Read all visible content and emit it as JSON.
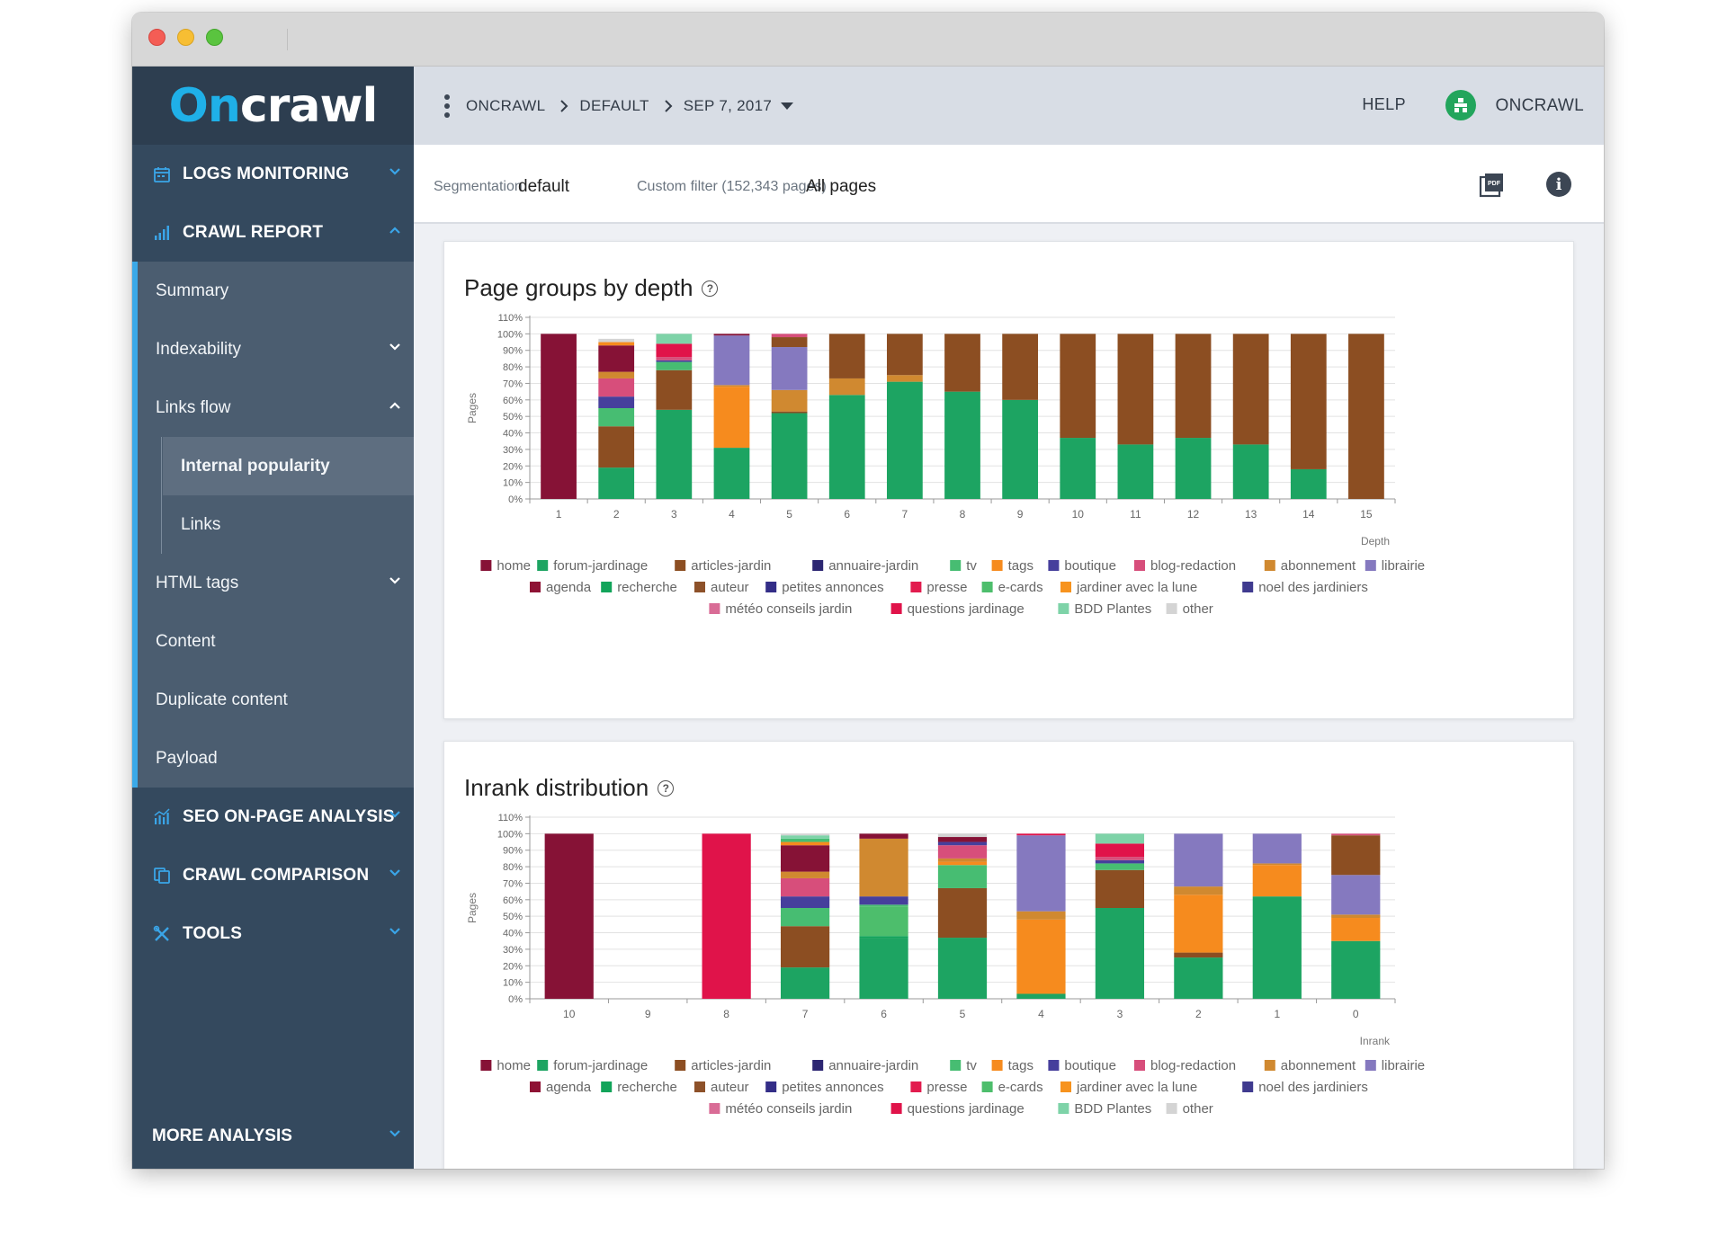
{
  "app": {
    "logo_on": "On",
    "logo_crawl": "crawl"
  },
  "sidebar": {
    "logs_monitoring": "LOGS MONITORING",
    "crawl_report": "CRAWL REPORT",
    "sub": {
      "summary": "Summary",
      "indexability": "Indexability",
      "links_flow": "Links flow",
      "internal_popularity": "Internal popularity",
      "links": "Links",
      "html_tags": "HTML tags",
      "content": "Content",
      "duplicate_content": "Duplicate content",
      "payload": "Payload"
    },
    "seo_onpage": "SEO ON-PAGE ANALYSIS",
    "crawl_comparison": "CRAWL COMPARISON",
    "tools": "TOOLS",
    "more_analysis": "MORE ANALYSIS"
  },
  "header": {
    "breadcrumb": [
      "ONCRAWL",
      "DEFAULT",
      "SEP 7, 2017"
    ],
    "help": "HELP",
    "user": "ONCRAWL"
  },
  "filter": {
    "segmentation_label": "Segmentation",
    "segmentation_value": "default",
    "custom_label": "Custom filter (152,343 pages)",
    "custom_value": "All pages"
  },
  "colors": {
    "home": "#861236",
    "forum-jardinage": "#1da462",
    "articles-jardin": "#8c4e22",
    "annuaire-jardin": "#2c2672",
    "tv": "#47bd72",
    "tags": "#f68b1e",
    "boutique": "#463f9c",
    "blog-redaction": "#d74e7b",
    "abonnement": "#d08930",
    "librairie": "#8579bf",
    "agenda": "#8e1234",
    "recherche": "#12a45a",
    "auteur": "#8d5129",
    "petites annonces": "#332d87",
    "presse": "#e21c4e",
    "e-cards": "#4dbe6c",
    "jardiner avec la lune": "#f7931e",
    "noel des jardiniers": "#3f3a8f",
    "météo conseils jardin": "#d96c96",
    "questions jardinage": "#e0134a",
    "BDD Plantes": "#7ed3a8",
    "other": "#d4d4d4"
  },
  "legend": [
    [
      "home",
      "forum-jardinage",
      "articles-jardin",
      "annuaire-jardin",
      "tv",
      "tags",
      "boutique",
      "blog-redaction",
      "abonnement",
      "librairie"
    ],
    [
      "agenda",
      "recherche",
      "auteur",
      "petites annonces",
      "presse",
      "e-cards",
      "jardiner avec la lune",
      "noel des jardiniers"
    ],
    [
      "météo conseils jardin",
      "questions jardinage",
      "BDD Plantes",
      "other"
    ]
  ],
  "chart_data": [
    {
      "type": "bar",
      "stacked": true,
      "title": "Page groups by depth",
      "xlabel": "Depth",
      "ylabel": "Pages",
      "ylim": [
        0,
        110
      ],
      "yticks": [
        "0%",
        "10%",
        "20%",
        "30%",
        "40%",
        "50%",
        "60%",
        "70%",
        "80%",
        "90%",
        "100%",
        "110%"
      ],
      "categories": [
        "1",
        "2",
        "3",
        "4",
        "5",
        "6",
        "7",
        "8",
        "9",
        "10",
        "11",
        "12",
        "13",
        "14",
        "15"
      ],
      "stacks": [
        [
          [
            "home",
            100
          ]
        ],
        [
          [
            "forum-jardinage",
            19
          ],
          [
            "articles-jardin",
            25
          ],
          [
            "tv",
            11
          ],
          [
            "boutique",
            7
          ],
          [
            "blog-redaction",
            11
          ],
          [
            "abonnement",
            4
          ],
          [
            "home",
            16
          ],
          [
            "tags",
            2
          ],
          [
            "other",
            2
          ]
        ],
        [
          [
            "forum-jardinage",
            54
          ],
          [
            "articles-jardin",
            24
          ],
          [
            "tv",
            5
          ],
          [
            "boutique",
            1
          ],
          [
            "blog-redaction",
            2
          ],
          [
            "questions jardinage",
            8
          ],
          [
            "BDD Plantes",
            6
          ]
        ],
        [
          [
            "forum-jardinage",
            31
          ],
          [
            "tags",
            37
          ],
          [
            "abonnement",
            1
          ],
          [
            "librairie",
            30
          ],
          [
            "home",
            1
          ]
        ],
        [
          [
            "forum-jardinage",
            52
          ],
          [
            "articles-jardin",
            1
          ],
          [
            "abonnement",
            13
          ],
          [
            "librairie",
            26
          ],
          [
            "articles-jardin",
            6
          ],
          [
            "blog-redaction",
            2
          ]
        ],
        [
          [
            "forum-jardinage",
            63
          ],
          [
            "abonnement",
            10
          ],
          [
            "articles-jardin",
            27
          ]
        ],
        [
          [
            "forum-jardinage",
            71
          ],
          [
            "abonnement",
            4
          ],
          [
            "articles-jardin",
            25
          ]
        ],
        [
          [
            "forum-jardinage",
            65
          ],
          [
            "articles-jardin",
            35
          ]
        ],
        [
          [
            "forum-jardinage",
            60
          ],
          [
            "articles-jardin",
            40
          ]
        ],
        [
          [
            "forum-jardinage",
            37
          ],
          [
            "articles-jardin",
            63
          ]
        ],
        [
          [
            "forum-jardinage",
            33
          ],
          [
            "articles-jardin",
            67
          ]
        ],
        [
          [
            "forum-jardinage",
            37
          ],
          [
            "articles-jardin",
            63
          ]
        ],
        [
          [
            "forum-jardinage",
            33
          ],
          [
            "articles-jardin",
            67
          ]
        ],
        [
          [
            "forum-jardinage",
            18
          ],
          [
            "articles-jardin",
            82
          ]
        ],
        [
          [
            "articles-jardin",
            100
          ]
        ]
      ]
    },
    {
      "type": "bar",
      "stacked": true,
      "title": "Inrank distribution",
      "xlabel": "Inrank",
      "ylabel": "Pages",
      "ylim": [
        0,
        110
      ],
      "yticks": [
        "0%",
        "10%",
        "20%",
        "30%",
        "40%",
        "50%",
        "60%",
        "70%",
        "80%",
        "90%",
        "100%",
        "110%"
      ],
      "categories": [
        "10",
        "9",
        "8",
        "7",
        "6",
        "5",
        "4",
        "3",
        "2",
        "1",
        "0"
      ],
      "stacks": [
        [
          [
            "home",
            100
          ]
        ],
        [],
        [
          [
            "questions jardinage",
            100
          ]
        ],
        [
          [
            "forum-jardinage",
            19
          ],
          [
            "articles-jardin",
            25
          ],
          [
            "tv",
            11
          ],
          [
            "boutique",
            7
          ],
          [
            "blog-redaction",
            11
          ],
          [
            "abonnement",
            4
          ],
          [
            "home",
            16
          ],
          [
            "tags",
            2
          ],
          [
            "tv",
            2
          ],
          [
            "BDD Plantes",
            2
          ],
          [
            "other",
            1
          ]
        ],
        [
          [
            "forum-jardinage",
            37
          ],
          [
            "recherche",
            1
          ],
          [
            "e-cards",
            18
          ],
          [
            "tv",
            1
          ],
          [
            "boutique",
            5
          ],
          [
            "abonnement",
            35
          ],
          [
            "home",
            3
          ]
        ],
        [
          [
            "forum-jardinage",
            37
          ],
          [
            "articles-jardin",
            30
          ],
          [
            "tv",
            14
          ],
          [
            "tags",
            2
          ],
          [
            "abonnement",
            2
          ],
          [
            "blog-redaction",
            8
          ],
          [
            "boutique",
            2
          ],
          [
            "home",
            3
          ],
          [
            "other",
            2
          ]
        ],
        [
          [
            "forum-jardinage",
            3
          ],
          [
            "tags",
            45
          ],
          [
            "abonnement",
            5
          ],
          [
            "librairie",
            46
          ],
          [
            "questions jardinage",
            1
          ]
        ],
        [
          [
            "forum-jardinage",
            55
          ],
          [
            "articles-jardin",
            23
          ],
          [
            "tv",
            4
          ],
          [
            "boutique",
            2
          ],
          [
            "blog-redaction",
            2
          ],
          [
            "questions jardinage",
            8
          ],
          [
            "BDD Plantes",
            6
          ]
        ],
        [
          [
            "forum-jardinage",
            25
          ],
          [
            "articles-jardin",
            3
          ],
          [
            "tags",
            35
          ],
          [
            "abonnement",
            5
          ],
          [
            "librairie",
            32
          ]
        ],
        [
          [
            "forum-jardinage",
            62
          ],
          [
            "tags",
            19
          ],
          [
            "abonnement",
            1
          ],
          [
            "librairie",
            18
          ]
        ],
        [
          [
            "forum-jardinage",
            35
          ],
          [
            "tags",
            14
          ],
          [
            "abonnement",
            2
          ],
          [
            "librairie",
            24
          ],
          [
            "articles-jardin",
            24
          ],
          [
            "blog-redaction",
            1
          ]
        ]
      ]
    }
  ]
}
